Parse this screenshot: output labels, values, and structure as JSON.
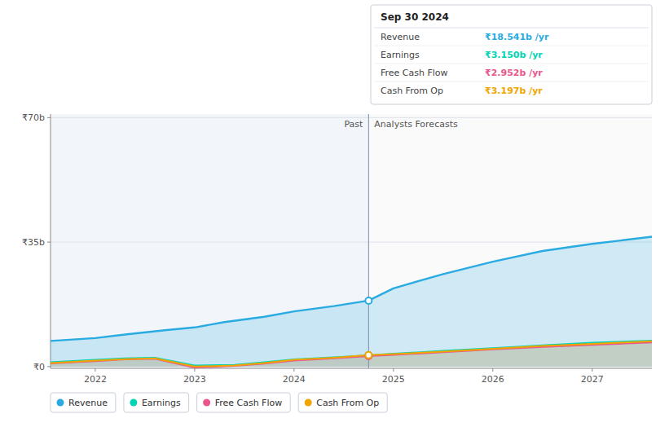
{
  "chart_data": {
    "type": "area",
    "xlim": [
      2021.55,
      2027.6
    ],
    "xticks": [
      2022,
      2023,
      2024,
      2025,
      2026,
      2027
    ],
    "ylim": [
      -0.5,
      71
    ],
    "yticks": [
      {
        "value": 0,
        "label": "₹0"
      },
      {
        "value": 35,
        "label": "₹35b"
      },
      {
        "value": 70,
        "label": "₹70b"
      }
    ],
    "grid": true,
    "legend": "bottom",
    "divider": 2024.75,
    "annotations": [
      {
        "text": "Past"
      },
      {
        "text": "Analysts Forecasts"
      }
    ],
    "tooltip": {
      "title": "Sep 30 2024",
      "rows": [
        {
          "name": "Revenue",
          "value": 18.541,
          "label": "₹18.541b /yr",
          "color": "#29abe2"
        },
        {
          "name": "Earnings",
          "value": 3.15,
          "label": "₹3.150b /yr",
          "color": "#00d4b4"
        },
        {
          "name": "Free Cash Flow",
          "value": 2.952,
          "label": "₹2.952b /yr",
          "color": "#e8568c"
        },
        {
          "name": "Cash From Op",
          "value": 3.197,
          "label": "₹3.197b /yr",
          "color": "#f0a500"
        }
      ]
    },
    "series": [
      {
        "name": "Revenue",
        "color": "#29abe2",
        "x": [
          2021.55,
          2022.0,
          2022.3,
          2022.7,
          2023.0,
          2023.3,
          2023.7,
          2024.0,
          2024.4,
          2024.75,
          2025.0,
          2025.5,
          2026.0,
          2026.5,
          2027.0,
          2027.6
        ],
        "values": [
          7.2,
          8.0,
          9.0,
          10.2,
          11.0,
          12.5,
          14.0,
          15.5,
          17.0,
          18.541,
          22.0,
          26.0,
          29.5,
          32.5,
          34.5,
          36.5
        ]
      },
      {
        "name": "Earnings",
        "color": "#00d4b4",
        "x": [
          2021.55,
          2022.0,
          2022.3,
          2022.6,
          2023.0,
          2023.4,
          2023.7,
          2024.0,
          2024.4,
          2024.75,
          2025.0,
          2025.5,
          2026.0,
          2026.5,
          2027.0,
          2027.6
        ],
        "values": [
          1.2,
          1.9,
          2.3,
          2.5,
          0.3,
          0.5,
          1.2,
          2.0,
          2.6,
          3.15,
          3.6,
          4.4,
          5.2,
          6.0,
          6.7,
          7.3
        ]
      },
      {
        "name": "Free Cash Flow",
        "color": "#e8568c",
        "x": [
          2021.55,
          2022.0,
          2022.3,
          2022.6,
          2023.0,
          2023.4,
          2023.7,
          2024.0,
          2024.4,
          2024.75,
          2025.0,
          2025.5,
          2026.0,
          2026.5,
          2027.0,
          2027.6
        ],
        "values": [
          0.9,
          1.5,
          2.0,
          2.2,
          -0.3,
          0.2,
          0.8,
          1.7,
          2.3,
          2.952,
          3.3,
          4.0,
          4.8,
          5.5,
          6.1,
          6.8
        ]
      },
      {
        "name": "Cash From Op",
        "color": "#f0a500",
        "x": [
          2021.55,
          2022.0,
          2022.3,
          2022.6,
          2023.0,
          2023.4,
          2023.7,
          2024.0,
          2024.4,
          2024.75,
          2025.0,
          2025.5,
          2026.0,
          2026.5,
          2027.0,
          2027.6
        ],
        "values": [
          1.0,
          1.7,
          2.1,
          2.3,
          0.0,
          0.3,
          1.0,
          1.9,
          2.5,
          3.197,
          3.5,
          4.2,
          5.0,
          5.8,
          6.4,
          7.1
        ]
      }
    ]
  }
}
